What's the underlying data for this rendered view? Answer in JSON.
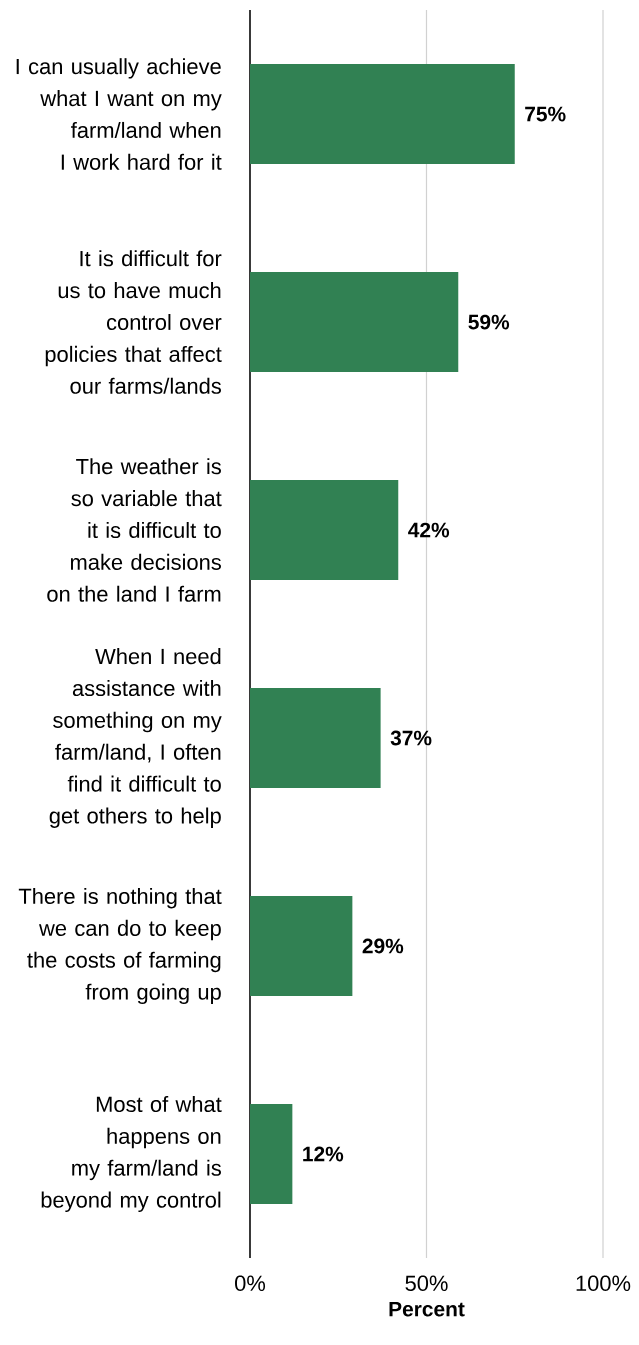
{
  "chart_data": {
    "type": "bar",
    "orientation": "horizontal",
    "xlabel": "Percent",
    "categories": [
      "I can usually achieve what I want on my farm/land when I work hard for it",
      "It is difficult for us to have much control over policies that affect our farms/lands",
      "The weather is so variable that it is difficult to make decisions on the land I farm",
      "When I need assistance with something on my farm/land, I often find it difficult to get others to help",
      "There is nothing that we can do to keep the costs of farming from going up",
      "Most of what happens on my farm/land is beyond my control"
    ],
    "values": [
      75,
      59,
      42,
      37,
      29,
      12
    ],
    "value_labels": [
      "75%",
      "59%",
      "42%",
      "37%",
      "29%",
      "12%"
    ],
    "color": "#318153",
    "xlim": [
      0,
      100
    ],
    "xticks": [
      {
        "value": 0,
        "label": "0%"
      },
      {
        "value": 50,
        "label": "50%"
      },
      {
        "value": 100,
        "label": "100%"
      }
    ],
    "grid": "x"
  }
}
